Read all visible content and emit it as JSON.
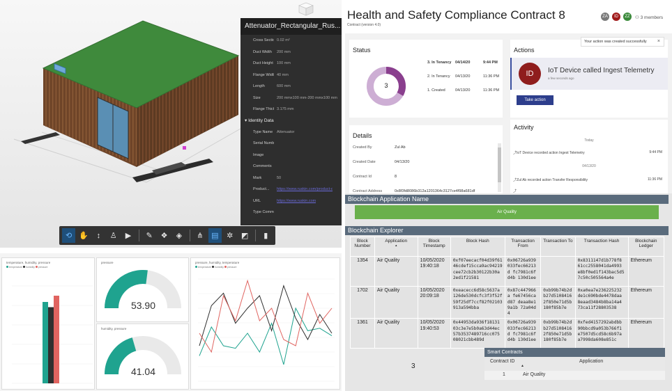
{
  "bim": {
    "properties_title": "Attenuator_Rectangular_Rus...",
    "dimensions": [
      {
        "label": "Cross Sectio...",
        "value": "0.02 m²"
      },
      {
        "label": "Duct Width",
        "value": "200 mm"
      },
      {
        "label": "Duct Height",
        "value": "100 mm"
      },
      {
        "label": "Flange Width",
        "value": "40 mm"
      },
      {
        "label": "Length",
        "value": "600 mm"
      },
      {
        "label": "Size",
        "value": "200 mmx100 mm-200 mmx100 mm"
      },
      {
        "label": "Flange Thick...",
        "value": "3.175 mm"
      }
    ],
    "identity_section": "Identity Data",
    "identity": [
      {
        "label": "Type Name",
        "value": "Attenuator"
      },
      {
        "label": "Serial Number",
        "value": ""
      },
      {
        "label": "Image",
        "value": ""
      },
      {
        "label": "Comments",
        "value": ""
      },
      {
        "label": "Mark",
        "value": "50"
      },
      {
        "label": "Product...",
        "value": "https://www.ruskin.com/product-detail"
      },
      {
        "label": "URL",
        "value": "https://www.ruskin.com"
      },
      {
        "label": "Type Comme...",
        "value": ""
      }
    ],
    "toolbar_icons": [
      "orbit-icon",
      "pan-icon",
      "zoom-icon",
      "first-person-icon",
      "camera-icon",
      "measure-icon",
      "explode-icon",
      "section-icon",
      "model-browser-icon",
      "properties-icon",
      "settings-icon",
      "fullscreen-icon",
      "vr-icon"
    ],
    "colors": {
      "roof": "#3f8a3c",
      "wall": "#7a4b2e",
      "glass": "#5a8fb4"
    }
  },
  "dashboard": {
    "bar_panel": {
      "title": "temperature, humidity, pressure",
      "legend": [
        "temperature",
        "humidity",
        "pressure"
      ],
      "chart_data": {
        "type": "bar",
        "series": [
          {
            "name": "temperature",
            "values": [
              78
            ],
            "color": "#1fa38f"
          },
          {
            "name": "humidity",
            "values": [
              73
            ],
            "color": "#2f2f2f"
          },
          {
            "name": "pressure",
            "values": [
              84
            ],
            "color": "#e06460"
          }
        ],
        "ylim": [
          0,
          100
        ]
      }
    },
    "gauge1": {
      "title": "pressure",
      "value": "53.90",
      "fraction": 0.54
    },
    "gauge2": {
      "title": "humidity, pressure",
      "value": "41.04",
      "fraction": 0.41
    },
    "line_panel": {
      "title": "pressure, humidity, temperature",
      "legend": [
        "temperature",
        "humidity",
        "pressure"
      ],
      "chart_data": {
        "type": "line",
        "series": [
          {
            "name": "temperature",
            "color": "#1fa38f",
            "values": [
              22,
              45,
              30,
              28,
              40,
              25,
              48,
              15,
              60,
              42,
              44,
              38
            ]
          },
          {
            "name": "humidity",
            "color": "#2f2f2f",
            "values": [
              30,
              62,
              72,
              48,
              60,
              70,
              42,
              78,
              52,
              35,
              55,
              40
            ]
          },
          {
            "name": "pressure",
            "color": "#e06460",
            "values": [
              40,
              25,
              70,
              50,
              82,
              50,
              60,
              35,
              30,
              72,
              48,
              60
            ]
          }
        ]
      }
    }
  },
  "app": {
    "title": "Health and Safety Compliance Contract 8",
    "subtitle": "Contract (version 4.0)",
    "avatars": [
      {
        "initials": "ZA",
        "color": "#7a7a7a"
      },
      {
        "initials": "ID",
        "color": "#a01a1a"
      },
      {
        "initials": "ZZ",
        "color": "#3b8a3b"
      }
    ],
    "members": "3 members",
    "toast": "Your action was created successfully",
    "status": {
      "heading": "Status",
      "center": "3",
      "rows": [
        {
          "label": "3. In Tenancy",
          "date": "04/14/20",
          "time": "9:44 PM",
          "bold": true
        },
        {
          "label": "2. In Tenancy",
          "date": "04/13/20",
          "time": "11:36 PM",
          "bold": false
        },
        {
          "label": "1. Created",
          "date": "04/13/20",
          "time": "11:36 PM",
          "bold": false
        }
      ]
    },
    "actions": {
      "heading": "Actions",
      "initials": "ID",
      "text": "IoT Device called Ingest Telemetry",
      "sub": "a few seconds ago",
      "button": "Take action"
    },
    "details": {
      "heading": "Details",
      "rows": [
        {
          "k": "Created By",
          "v": "Zul Ab"
        },
        {
          "k": "Created Date",
          "v": "04/13/20"
        },
        {
          "k": "Contract Id",
          "v": "8"
        },
        {
          "k": "Contract Address",
          "v": "0x8f3fd8086b312a1201364c3127ce4f98a681df"
        }
      ]
    },
    "activity": {
      "heading": "Activity",
      "day1": "Today",
      "item1": "IoT Device recorded action Ingest Telemetry",
      "time1": "9:44 PM",
      "day2": "04/13/20",
      "item2": "Zul Ab recorded action Transfer Responsibility",
      "time2": "11:36 PM"
    },
    "bc_app_header": "Blockchain Application Name",
    "bc_app_name": "Air Quality",
    "explorer_header": "Blockchain Explorer",
    "columns": [
      "Block Number",
      "Application",
      "Block Timestamp",
      "Block Hash",
      "Transaction From",
      "Transaction To",
      "Transaction Hash",
      "Blockchain Ledger"
    ],
    "rows": [
      [
        "1354",
        "Air Quality",
        "10/05/2020 19:40:18",
        "0xf07eecacf04d39f61 46cdef15cca9ac94219 cee72cb2b30122b30a 2ed1f21581",
        "0x06726a939 033fec66213d fc7981c6fd4b 130d1ee",
        "",
        "0x8311147d1b778f8 61cc2558041da4993 e8bf0ed1f143bac5d5 7c50c505564a4e",
        "Ethereum"
      ],
      [
        "1702",
        "Air Quality",
        "10/05/2020 20:09:18",
        "0xeacecc6d58c5637a 126de530dcfc3f3f52f 59f25df7ccf82f02103 913a594bba",
        "0x87c447966a fe67456cad87 deaa8e19a1b 72a04d4",
        "0xb99b74b2d b27d5108416 2f850e71d5b 180f85b7e",
        "0xa0ea7e236225232 de1c690bde4478daa 8eaad3484b8ba14a4 73ca11f28803538",
        "Ethereum"
      ],
      [
        "1361",
        "Air Quality",
        "10/05/2020 19:40:53",
        "0x44953da936f18131 03c3e7e5b0a63d44ec 57b3537489716cc075 08021cbb489d",
        "0x06726a939 033fec66213d fc7981c6fd4b 130d1ee",
        "0xb99b74b2d b27d5108416 2f850e71d5b 180f85b7e",
        "0xfed4157292abdbb 90bbcd9a053b766f1 e7507d5cd58c6b97a a7998da608e851c",
        "Ethereum"
      ]
    ],
    "contracts_count": "3",
    "smart_contracts": {
      "header": "Smart Contracts",
      "col1": "Contract ID",
      "col2": "Application",
      "id": "1",
      "app": "Air Quality"
    }
  }
}
